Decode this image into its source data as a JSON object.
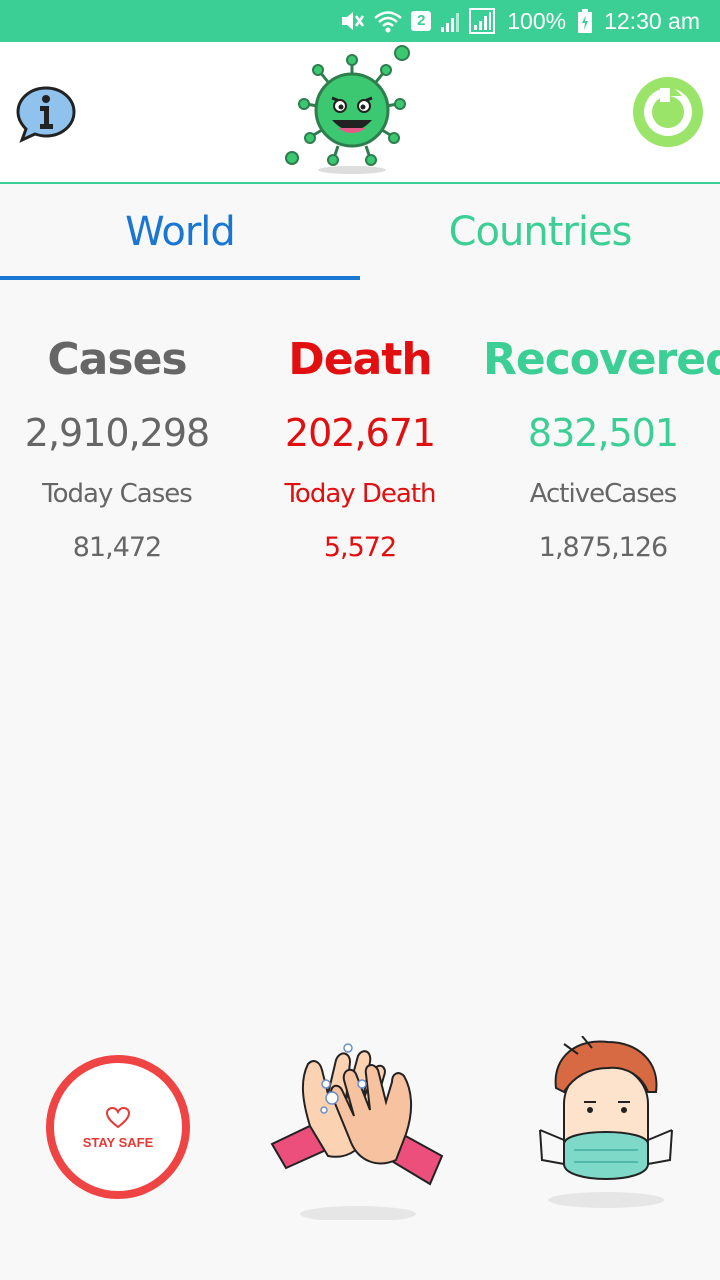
{
  "status_bar": {
    "sim_badge": "2",
    "battery": "100%",
    "time": "12:30 am"
  },
  "tabs": [
    {
      "label": "World",
      "active": true
    },
    {
      "label": "Countries",
      "active": false
    }
  ],
  "stats": {
    "cases": {
      "title": "Cases",
      "value": "2,910,298",
      "sub_label": "Today Cases",
      "sub_value": "81,472"
    },
    "death": {
      "title": "Death",
      "value": "202,671",
      "sub_label": "Today Death",
      "sub_value": "5,572"
    },
    "recovered": {
      "title": "Recovered",
      "value": "832,501",
      "sub_label": "ActiveCases",
      "sub_value": "1,875,126"
    }
  },
  "illustrations": {
    "stay_safe_text": "STAY SAFE"
  },
  "icons": {
    "info": "info-icon",
    "refresh": "refresh-icon",
    "logo": "virus-icon"
  },
  "colors": {
    "accent_green": "#3ccf95",
    "tab_blue": "#1976d2",
    "death_red": "#e10f0f",
    "text_grey": "#666666"
  }
}
